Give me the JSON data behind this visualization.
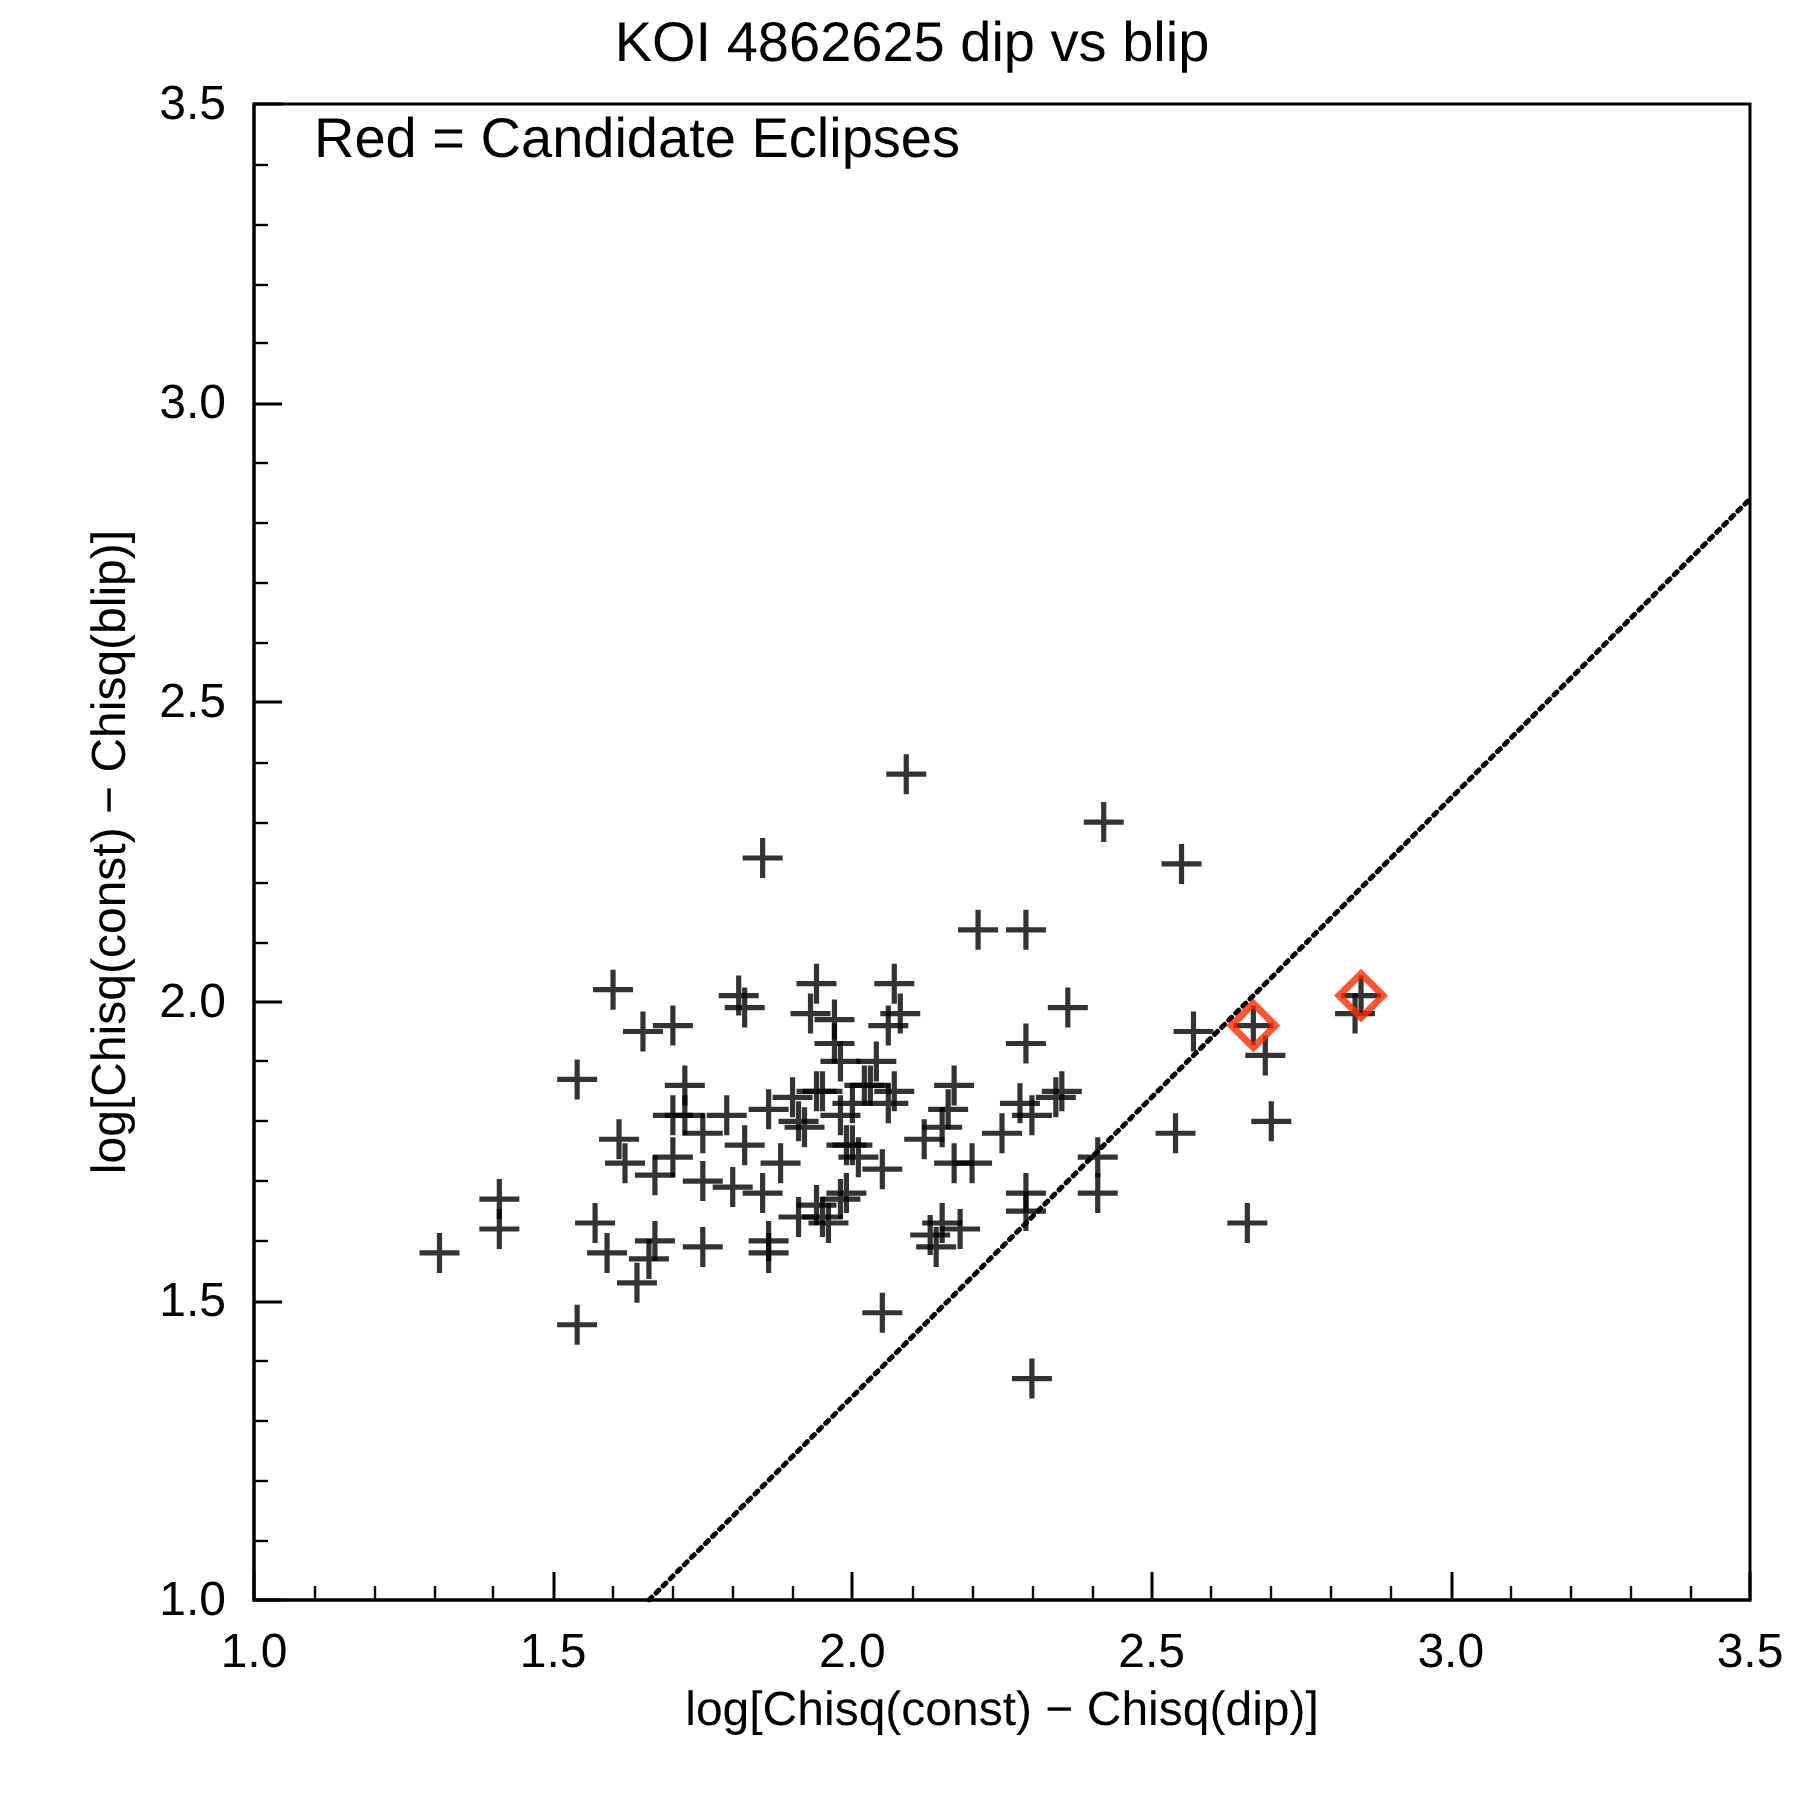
{
  "chart_data": {
    "type": "scatter",
    "title": "KOI 4862625 dip vs blip",
    "xlabel": "log[Chisq(const) − Chisq(dip)]",
    "ylabel": "log[Chisq(const) − Chisq(blip)]",
    "annotations": [
      "Red = Candidate Eclipses"
    ],
    "xlim": [
      1.0,
      3.5
    ],
    "ylim": [
      1.0,
      3.5
    ],
    "xticks": [
      {
        "value": 1,
        "label": "1.0"
      },
      1.5,
      {
        "value": 2,
        "label": "2.0"
      },
      2.5,
      {
        "value": 3,
        "label": "3.0"
      },
      3.5
    ],
    "yticks": [
      {
        "value": 1,
        "label": "1.0"
      },
      1.5,
      {
        "value": 2,
        "label": "2.0"
      },
      2.5,
      {
        "value": 3,
        "label": "3.0"
      },
      3.5
    ],
    "grid": false,
    "series": [
      {
        "type": "scatter",
        "marker": "cross",
        "color": "#000000",
        "x": [
          1.85,
          1.6,
          1.81,
          1.82,
          1.94,
          1.93,
          1.97,
          1.65,
          1.7,
          1.54,
          1.72,
          1.7,
          1.72,
          1.75,
          1.79,
          1.61,
          1.62,
          1.67,
          1.7,
          1.75,
          1.8,
          1.82,
          1.85,
          1.88,
          1.86,
          1.9,
          1.91,
          1.95,
          1.98,
          1.98,
          2.0,
          2.03,
          1.98,
          1.91,
          1.95,
          1.41,
          1.41,
          1.31,
          1.57,
          1.59,
          1.67,
          1.66,
          1.64,
          1.75,
          1.86,
          1.86,
          1.54,
          2.09,
          2.42,
          2.55,
          2.21,
          2.29,
          2.07,
          2.08,
          2.06,
          2.36,
          2.29,
          2.57,
          2.67,
          2.69,
          2.7,
          2.54,
          2.66,
          2.41,
          2.41,
          2.35,
          2.34,
          2.28,
          2.3,
          2.25,
          2.17,
          2.16,
          2.15,
          2.12,
          2.17,
          2.2,
          2.29,
          2.29,
          2.15,
          2.18,
          2.13,
          2.14,
          2.05,
          2.3,
          1.97,
          2.04,
          2.02,
          2.07,
          2.0,
          2.06,
          1.94,
          1.92,
          1.99,
          2.01,
          2.05,
          1.99,
          1.94,
          1.96,
          2.85,
          2.84
        ],
        "values": [
          2.24,
          2.02,
          2.01,
          1.99,
          2.03,
          1.98,
          1.97,
          1.95,
          1.96,
          1.87,
          1.86,
          1.81,
          1.81,
          1.78,
          1.81,
          1.77,
          1.73,
          1.71,
          1.74,
          1.7,
          1.69,
          1.76,
          1.68,
          1.73,
          1.82,
          1.84,
          1.8,
          1.85,
          1.9,
          1.81,
          1.76,
          1.86,
          1.67,
          1.64,
          1.64,
          1.67,
          1.62,
          1.58,
          1.63,
          1.58,
          1.6,
          1.57,
          1.53,
          1.59,
          1.6,
          1.58,
          1.46,
          2.38,
          2.3,
          2.23,
          2.12,
          2.12,
          2.03,
          1.98,
          1.96,
          1.99,
          1.93,
          1.95,
          1.96,
          1.91,
          1.8,
          1.78,
          1.63,
          1.74,
          1.68,
          1.85,
          1.84,
          1.83,
          1.81,
          1.78,
          1.86,
          1.82,
          1.79,
          1.77,
          1.73,
          1.73,
          1.68,
          1.65,
          1.63,
          1.62,
          1.61,
          1.59,
          1.48,
          1.37,
          1.93,
          1.9,
          1.86,
          1.85,
          1.83,
          1.83,
          1.85,
          1.79,
          1.76,
          1.74,
          1.72,
          1.68,
          1.66,
          1.63,
          2.01,
          1.98
        ]
      },
      {
        "type": "scatter",
        "marker": "diamond",
        "color": "#ff2a00",
        "x": [
          2.67,
          2.85
        ],
        "values": [
          1.96,
          2.01
        ]
      },
      {
        "type": "line",
        "marker": "none",
        "line_style": "dotted",
        "color": "#000000",
        "x": [
          1.66,
          3.5
        ],
        "values": [
          1.0,
          2.84
        ]
      }
    ]
  }
}
